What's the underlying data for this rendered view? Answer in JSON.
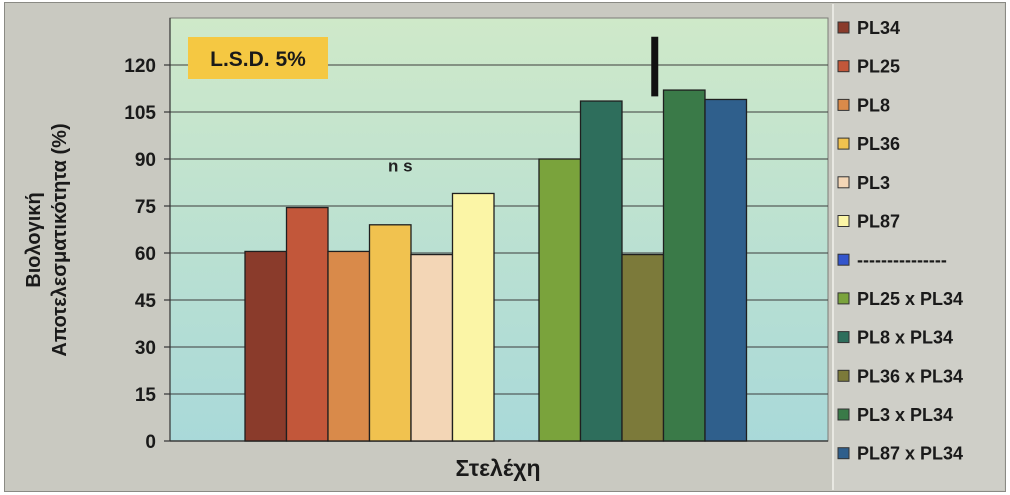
{
  "chart_data": {
    "type": "bar",
    "title": "",
    "xlabel": "Στελέχη",
    "ylabel_line1": "Βιολογική",
    "ylabel_line2": "Αποτελεσματικότητα (%)",
    "ylim": [
      0,
      135
    ],
    "yticks": [
      0,
      15,
      30,
      45,
      60,
      75,
      90,
      105,
      120
    ],
    "grid": "horizontal",
    "legend_position": "right",
    "lsd_label": "L.S.D. 5%",
    "lsd_bar": {
      "from": 110,
      "to": 129,
      "anchor_series": "PL36 x PL34"
    },
    "annotations": [
      {
        "text": "n s",
        "above_series": "PL36"
      }
    ],
    "groups": [
      {
        "series": [
          {
            "name": "PL34",
            "value": 60.5,
            "color": "#8a3b2b"
          },
          {
            "name": "PL25",
            "value": 74.5,
            "color": "#c2573a"
          },
          {
            "name": "PL8",
            "value": 60.5,
            "color": "#d98a4a"
          },
          {
            "name": "PL36",
            "value": 69,
            "color": "#f1c24f"
          },
          {
            "name": "PL3",
            "value": 59.5,
            "color": "#f3d6b6"
          },
          {
            "name": "PL87",
            "value": 79,
            "color": "#fbf5a6"
          }
        ]
      },
      {
        "series": [
          {
            "name": "PL25 x PL34",
            "value": 90,
            "color": "#7aa33c"
          },
          {
            "name": "PL8 x PL34",
            "value": 108.5,
            "color": "#2e6e5c"
          },
          {
            "name": "PL36 x PL34",
            "value": 59.5,
            "color": "#7c7a3a"
          },
          {
            "name": "PL3 x PL34",
            "value": 112,
            "color": "#3a7a48"
          },
          {
            "name": "PL87 x PL34",
            "value": 109,
            "color": "#2f5f8c"
          }
        ]
      }
    ],
    "legend": [
      {
        "label": "PL34",
        "color": "#8a3b2b"
      },
      {
        "label": "PL25",
        "color": "#c2573a"
      },
      {
        "label": "PL8",
        "color": "#d98a4a"
      },
      {
        "label": "PL36",
        "color": "#f1c24f"
      },
      {
        "label": "PL3",
        "color": "#f3d6b6"
      },
      {
        "label": "PL87",
        "color": "#fbf5a6"
      },
      {
        "label": "---------------",
        "color": "#3355cc"
      },
      {
        "label": "PL25 x PL34",
        "color": "#7aa33c"
      },
      {
        "label": "PL8 x PL34",
        "color": "#2e6e5c"
      },
      {
        "label": "PL36 x PL34",
        "color": "#7c7a3a"
      },
      {
        "label": "PL3 x PL34",
        "color": "#3a7a48"
      },
      {
        "label": "PL87 x PL34",
        "color": "#2f5f8c"
      }
    ],
    "plot_gradient": [
      "#cfe9c9",
      "#a9d9d9"
    ],
    "lsd_box_color": "#f5c842"
  }
}
